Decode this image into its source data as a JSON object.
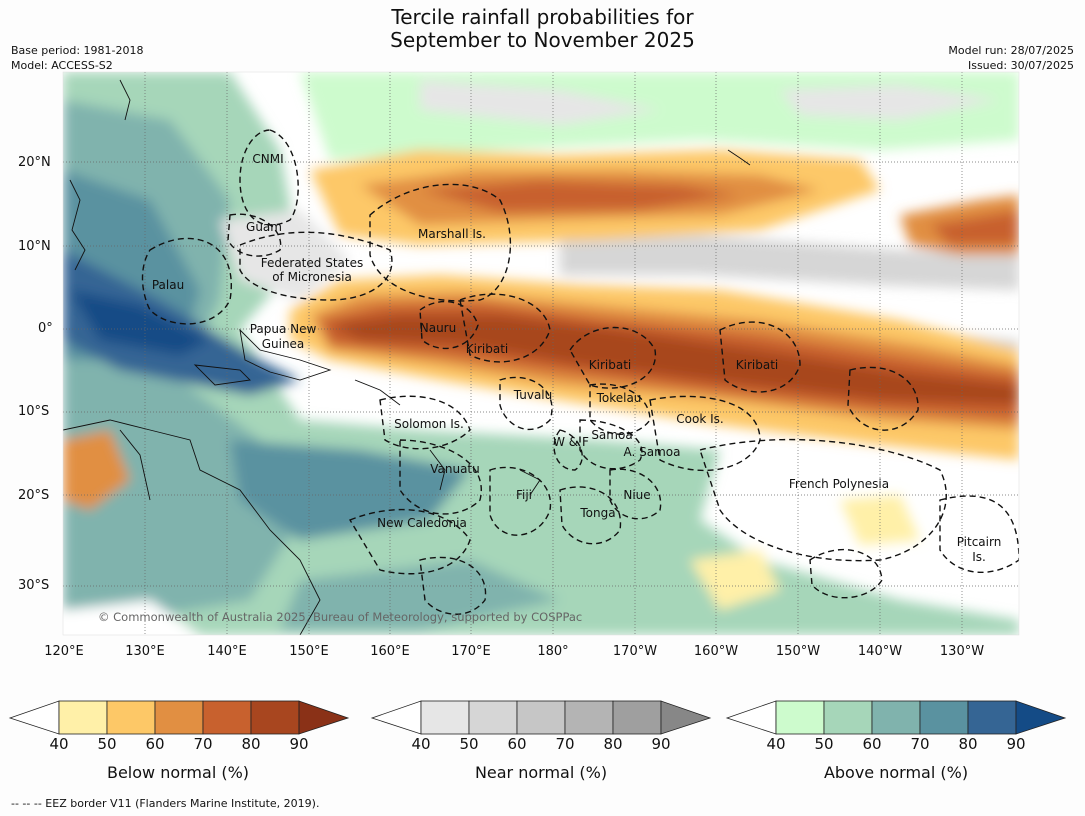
{
  "title_line1": "Tercile rainfall probabilities for",
  "title_line2": "September to November 2025",
  "meta": {
    "base_period": "Base period: 1981-2018",
    "model": "Model: ACCESS-S2",
    "model_run": "Model run: 28/07/2025",
    "issued": "Issued: 30/07/2025"
  },
  "lat_labels": [
    "20°N",
    "10°N",
    "0°",
    "10°S",
    "20°S",
    "30°S"
  ],
  "lon_labels": [
    "120°E",
    "130°E",
    "140°E",
    "150°E",
    "160°E",
    "170°E",
    "180°",
    "170°W",
    "160°W",
    "150°W",
    "140°W",
    "130°W"
  ],
  "places": [
    "CNMI",
    "Guam",
    "Marshall Is.",
    "Federated States",
    "of Micronesia",
    "Palau",
    "Papua New",
    "Guinea",
    "Nauru",
    "Kiribati",
    "Kiribati",
    "Kiribati",
    "Tuvalu",
    "Tokelau",
    "Cook Is.",
    "Solomon Is.",
    "Samoa",
    "W & F",
    "A. Samoa",
    "Vanuatu",
    "Fiji",
    "Niue",
    "Tonga",
    "French Polynesia",
    "New Caledonia",
    "Pitcairn",
    "Is."
  ],
  "copyright": "© Commonwealth of Australia 2025, Bureau of Meteorology, supported by COSPPac",
  "colorbars": [
    {
      "label": "Below normal (%)",
      "colors": [
        "#fff0a8",
        "#fdc867",
        "#e18f42",
        "#c8612e",
        "#a8461f",
        "#8a3117"
      ]
    },
    {
      "label": "Near normal (%)",
      "colors": [
        "#e6e6e6",
        "#d6d6d6",
        "#c6c6c6",
        "#b4b4b4",
        "#9f9f9f",
        "#878787"
      ]
    },
    {
      "label": "Above normal (%)",
      "colors": [
        "#cdfbcd",
        "#a6d6b9",
        "#80b3ad",
        "#5a92a0",
        "#356594",
        "#144b86"
      ]
    }
  ],
  "colorbar_ticks": [
    "40",
    "50",
    "60",
    "70",
    "80",
    "90"
  ],
  "footer": "--  --  -- EEZ border V11 (Flanders Marine Institute, 2019)."
}
